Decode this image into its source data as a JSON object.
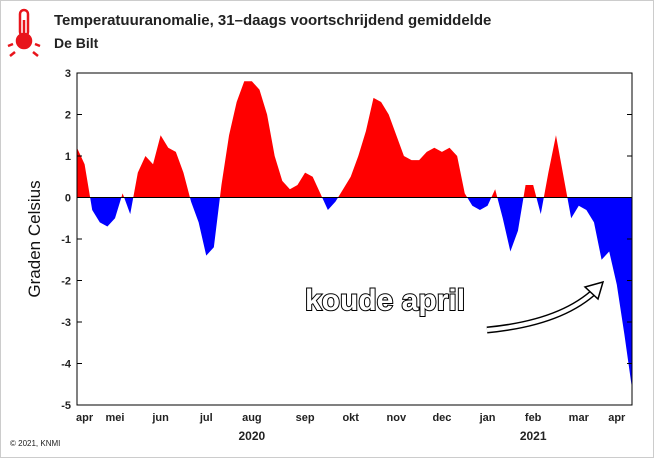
{
  "chart_data": {
    "type": "area",
    "title": "Temperatuuranomalie, 31–daags voortschrijdend gemiddelde",
    "subtitle": "De Bilt",
    "y_label": "Graden Celsius",
    "annotation": "koude april",
    "credit": "© 2021, KNMI",
    "years": [
      {
        "label": "2020",
        "category": 23
      },
      {
        "label": "2021",
        "category": 60
      }
    ],
    "categories": [
      null,
      "apr",
      null,
      null,
      null,
      "mei",
      null,
      null,
      null,
      null,
      null,
      "jun",
      null,
      null,
      null,
      null,
      null,
      "jul",
      null,
      null,
      null,
      null,
      null,
      "aug",
      null,
      null,
      null,
      null,
      null,
      null,
      "sep",
      null,
      null,
      null,
      null,
      null,
      "okt",
      null,
      null,
      null,
      null,
      null,
      "nov",
      null,
      null,
      null,
      null,
      null,
      "dec",
      null,
      null,
      null,
      null,
      null,
      "jan",
      null,
      null,
      null,
      null,
      null,
      "feb",
      null,
      null,
      null,
      null,
      null,
      "mar",
      null,
      null,
      null,
      null,
      "apr",
      null,
      null
    ],
    "series": [
      {
        "name": "anomalie",
        "pos_color": "#ff0000",
        "neg_color": "#0000ff",
        "values": [
          1.2,
          0.8,
          -0.3,
          -0.6,
          -0.7,
          -0.5,
          0.1,
          -0.4,
          0.6,
          1.0,
          0.8,
          1.5,
          1.2,
          1.1,
          0.6,
          -0.1,
          -0.6,
          -1.4,
          -1.2,
          0.3,
          1.5,
          2.3,
          2.8,
          2.8,
          2.6,
          2.0,
          1.0,
          0.4,
          0.2,
          0.3,
          0.6,
          0.5,
          0.1,
          -0.3,
          -0.1,
          0.2,
          0.5,
          1.0,
          1.6,
          2.4,
          2.3,
          2.0,
          1.5,
          1.0,
          0.9,
          0.9,
          1.1,
          1.2,
          1.1,
          1.2,
          1.0,
          0.1,
          -0.2,
          -0.3,
          -0.2,
          0.2,
          -0.5,
          -1.3,
          -0.8,
          0.3,
          0.3,
          -0.4,
          0.6,
          1.5,
          0.5,
          -0.5,
          -0.2,
          -0.3,
          -0.6,
          -1.5,
          -1.3,
          -2.1,
          -3.3,
          -4.6
        ]
      }
    ],
    "ylim": [
      -5,
      3
    ],
    "yticks": [
      -5,
      -4,
      -3,
      -2,
      -1,
      0,
      1,
      2,
      3
    ]
  }
}
